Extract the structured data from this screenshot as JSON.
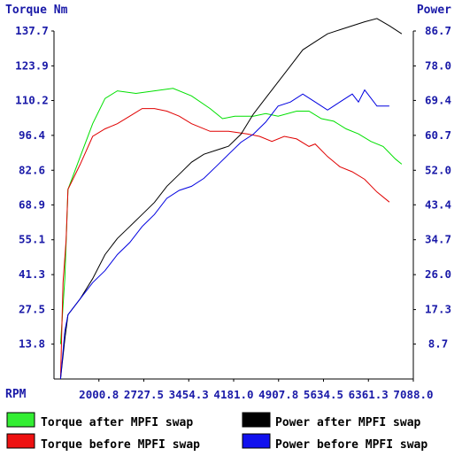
{
  "chart_data": {
    "type": "line",
    "left_axis_title": "Torque Nm",
    "right_axis_title": "Power",
    "x_axis_title": "RPM",
    "x_ticks": [
      "2000.8",
      "2727.5",
      "3454.3",
      "4181.0",
      "4907.8",
      "5634.5",
      "6361.3",
      "7088.0"
    ],
    "left_ticks": [
      "13.8",
      "27.5",
      "41.3",
      "55.1",
      "68.9",
      "82.6",
      "96.4",
      "110.2",
      "123.9",
      "137.7"
    ],
    "right_ticks": [
      "8.7",
      "17.3",
      "26.0",
      "34.7",
      "43.4",
      "52.0",
      "60.7",
      "69.4",
      "78.0",
      "86.7"
    ],
    "xlim": [
      1274.0,
      7088.0
    ],
    "left_ylim": [
      0,
      137.7
    ],
    "right_ylim": [
      0,
      86.7
    ],
    "grid": false,
    "legend_position": "bottom",
    "series": [
      {
        "name": "Torque after MPFI swap",
        "axis": "left",
        "color": "#00e000",
        "legend_swatch": "#33ee33",
        "x": [
          1380,
          1450,
          1500,
          1700,
          1900,
          2100,
          2300,
          2600,
          2900,
          3200,
          3500,
          3800,
          4000,
          4200,
          4500,
          4700,
          4900,
          5200,
          5400,
          5600,
          5800,
          6000,
          6200,
          6400,
          6600,
          6800,
          6900
        ],
        "values": [
          13.8,
          40,
          75,
          88,
          101,
          111,
          114,
          113,
          114,
          115,
          112,
          107,
          103,
          104,
          104,
          105,
          104,
          106,
          106,
          103,
          102,
          99,
          97,
          94,
          92,
          87,
          85
        ]
      },
      {
        "name": "Torque before MPFI swap",
        "axis": "left",
        "color": "#e00000",
        "legend_swatch": "#ee1111",
        "x": [
          1380,
          1420,
          1470,
          1500,
          1700,
          1900,
          2100,
          2300,
          2500,
          2700,
          2900,
          3100,
          3300,
          3500,
          3800,
          4100,
          4400,
          4600,
          4800,
          5000,
          5200,
          5400,
          5500,
          5700,
          5900,
          6100,
          6300,
          6500,
          6700
        ],
        "values": [
          0,
          38,
          55,
          75,
          85,
          96,
          99,
          101,
          104,
          107,
          107,
          106,
          104,
          101,
          98,
          98,
          97,
          96,
          94,
          96,
          95,
          92,
          93,
          88,
          84,
          82,
          79,
          74,
          70
        ]
      },
      {
        "name": "Power after MPFI swap",
        "axis": "right",
        "color": "#000000",
        "legend_swatch": "#000000",
        "x": [
          1380,
          1450,
          1500,
          1700,
          1900,
          2100,
          2300,
          2500,
          2700,
          2900,
          3100,
          3300,
          3500,
          3700,
          3900,
          4100,
          4300,
          4500,
          4700,
          4900,
          5100,
          5300,
          5500,
          5700,
          5900,
          6100,
          6300,
          6500,
          6700,
          6900
        ],
        "values": [
          0,
          10,
          16,
          20,
          25,
          31,
          35,
          38,
          41,
          44,
          48,
          51,
          54,
          56,
          57,
          58,
          61,
          66,
          70,
          74,
          78,
          82,
          84,
          86,
          87,
          88,
          89,
          89.8,
          88,
          86
        ]
      },
      {
        "name": "Power before MPFI swap",
        "axis": "right",
        "color": "#0000e0",
        "legend_swatch": "#1111ee",
        "x": [
          1380,
          1450,
          1500,
          1700,
          1900,
          2100,
          2300,
          2500,
          2700,
          2900,
          3100,
          3300,
          3500,
          3700,
          3900,
          4100,
          4300,
          4500,
          4700,
          4900,
          5100,
          5300,
          5500,
          5700,
          5900,
          6100,
          6200,
          6300,
          6400,
          6500,
          6700
        ],
        "values": [
          0,
          12,
          16,
          20,
          24,
          27,
          31,
          34,
          38,
          41,
          45,
          47,
          48,
          50,
          53,
          56,
          59,
          61,
          64,
          68,
          69,
          71,
          69,
          67,
          69,
          71,
          69,
          72,
          70,
          68,
          68
        ]
      }
    ]
  }
}
